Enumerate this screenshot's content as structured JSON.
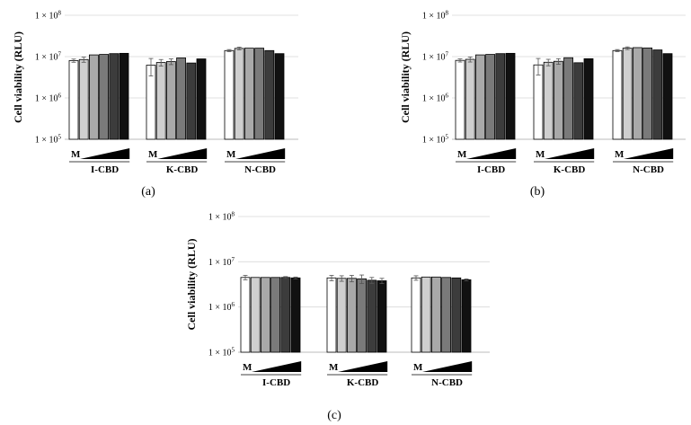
{
  "chart_data": [
    {
      "type": "bar",
      "panel_label": "(a)",
      "ylabel": "Cell viability (RLU)",
      "yscale": "log",
      "ylim": [
        100000,
        100000000
      ],
      "yticks": [
        "1 × 10^5",
        "1 × 10^6",
        "1 × 10^7",
        "1 × 10^8"
      ],
      "grid": true,
      "mock_label": "M",
      "groups": [
        {
          "name": "I-CBD",
          "values": [
            8000000,
            8500000,
            11000000,
            11300000,
            11800000,
            12000000
          ],
          "errors": [
            700000,
            1200000,
            0,
            0,
            0,
            0
          ]
        },
        {
          "name": "K-CBD",
          "values": [
            6200000,
            7200000,
            7600000,
            9300000,
            7000000,
            8800000
          ],
          "errors": [
            2800000,
            1300000,
            1200000,
            0,
            0,
            0
          ]
        },
        {
          "name": "N-CBD",
          "values": [
            14000000,
            15800000,
            16000000,
            16000000,
            14000000,
            11800000
          ],
          "errors": [
            800000,
            1200000,
            0,
            0,
            0,
            0
          ]
        }
      ]
    },
    {
      "type": "bar",
      "panel_label": "(b)",
      "ylabel": "Cell viability (RLU)",
      "yscale": "log",
      "ylim": [
        100000,
        100000000
      ],
      "yticks": [
        "1 × 10^5",
        "1 × 10^6",
        "1 × 10^7",
        "1 × 10^8"
      ],
      "grid": true,
      "mock_label": "M",
      "groups": [
        {
          "name": "I-CBD",
          "values": [
            8100000,
            8600000,
            11000000,
            11300000,
            11800000,
            12000000
          ],
          "errors": [
            700000,
            1200000,
            0,
            0,
            0,
            0
          ]
        },
        {
          "name": "K-CBD",
          "values": [
            6300000,
            7300000,
            7700000,
            9400000,
            7100000,
            8900000
          ],
          "errors": [
            2700000,
            1300000,
            1200000,
            0,
            0,
            0
          ]
        },
        {
          "name": "N-CBD",
          "values": [
            14000000,
            16000000,
            16500000,
            16200000,
            14500000,
            11800000
          ],
          "errors": [
            800000,
            1200000,
            0,
            0,
            0,
            0
          ]
        }
      ]
    },
    {
      "type": "bar",
      "panel_label": "(c)",
      "ylabel": "Cell viability (RLU)",
      "yscale": "log",
      "ylim": [
        100000,
        100000000
      ],
      "yticks": [
        "1 × 10^5",
        "1 × 10^6",
        "1 × 10^7",
        "1 × 10^8"
      ],
      "grid": true,
      "mock_label": "M",
      "groups": [
        {
          "name": "I-CBD",
          "values": [
            4500000,
            4500000,
            4500000,
            4500000,
            4500000,
            4400000
          ],
          "errors": [
            500000,
            0,
            0,
            0,
            200000,
            200000
          ]
        },
        {
          "name": "K-CBD",
          "values": [
            4400000,
            4300000,
            4300000,
            4200000,
            3900000,
            3800000
          ],
          "errors": [
            600000,
            600000,
            700000,
            900000,
            600000,
            500000
          ]
        },
        {
          "name": "N-CBD",
          "values": [
            4400000,
            4600000,
            4600000,
            4500000,
            4400000,
            4000000
          ],
          "errors": [
            500000,
            0,
            0,
            0,
            0,
            200000
          ]
        }
      ]
    }
  ],
  "bar_colors": [
    "#ffffff",
    "#cfcfcf",
    "#a9a9a9",
    "#7a7a7a",
    "#3c3c3c",
    "#111111"
  ]
}
